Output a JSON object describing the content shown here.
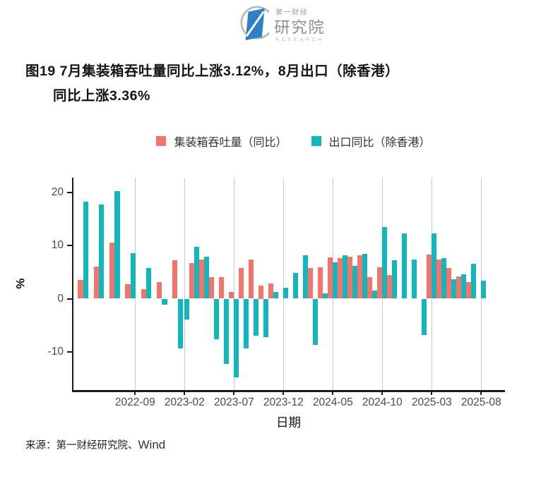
{
  "logo": {
    "brand_top": "第一财经",
    "brand_main": "研究院",
    "brand_sub": "RESEARCH",
    "brand_blue": "#2E80C2"
  },
  "title": {
    "line1": "图19 7月集装箱吞吐量同比上涨3.12%，8月出口（除香港）",
    "line2": "同比上涨3.36%"
  },
  "legend": [
    {
      "label": "集装箱吞吐量（同比）",
      "color": "#F3746D"
    },
    {
      "label": "出口同比（除香港）",
      "color": "#12B7BC"
    }
  ],
  "chart_data": {
    "type": "bar",
    "title": "图19 7月集装箱吞吐量同比上涨3.12%，8月出口（除香港）同比上涨3.36%",
    "xlabel": "日期",
    "ylabel": "%",
    "ylim": [
      -17,
      22.5
    ],
    "yticks": [
      20,
      10,
      0,
      -10
    ],
    "x_tick_labels": [
      "2022-09",
      "2023-02",
      "2023-07",
      "2023-12",
      "2024-05",
      "2024-10",
      "2025-03",
      "2025-08"
    ],
    "grid": "vertical-only",
    "legend_position": "top-center",
    "series_names": {
      "throughput": "集装箱吞吐量（同比）",
      "exports": "出口同比（除香港）"
    },
    "colors": {
      "throughput": "#F3746D",
      "exports": "#12B7BC"
    },
    "rows": [
      {
        "date": "2022-06",
        "throughput": 3.5,
        "exports": 18.2
      },
      {
        "date": "2022-07",
        "throughput": 6.0,
        "exports": 17.7
      },
      {
        "date": "2022-08",
        "throughput": 10.5,
        "exports": 20.2
      },
      {
        "date": "2022-09",
        "throughput": 2.7,
        "exports": 8.6
      },
      {
        "date": "2022-10",
        "throughput": 1.8,
        "exports": 5.7
      },
      {
        "date": "2022-11",
        "throughput": 3.1,
        "exports": -1.1
      },
      {
        "date": "2022-12",
        "throughput": 7.2,
        "exports": -9.3
      },
      {
        "date": "2023-02",
        "throughput": null,
        "exports": -3.9
      },
      {
        "date": "2023-03",
        "throughput": 6.7,
        "exports": 9.7
      },
      {
        "date": "2023-04",
        "throughput": 7.3,
        "exports": 7.9
      },
      {
        "date": "2023-05",
        "throughput": 4.0,
        "exports": -7.6
      },
      {
        "date": "2023-06",
        "throughput": 4.0,
        "exports": -12.2
      },
      {
        "date": "2023-07",
        "throughput": 1.2,
        "exports": -14.8
      },
      {
        "date": "2023-08",
        "throughput": 5.8,
        "exports": -9.3
      },
      {
        "date": "2023-09",
        "throughput": 7.3,
        "exports": -6.9
      },
      {
        "date": "2023-10",
        "throughput": 2.5,
        "exports": -7.2
      },
      {
        "date": "2023-11",
        "throughput": 2.9,
        "exports": 1.2
      },
      {
        "date": "2023-12",
        "throughput": null,
        "exports": 2.0
      },
      {
        "date": "2024-01",
        "throughput": null,
        "exports": 4.9
      },
      {
        "date": "2024-02",
        "throughput": null,
        "exports": 8.1
      },
      {
        "date": "2024-03",
        "throughput": 5.7,
        "exports": -8.7
      },
      {
        "date": "2024-04",
        "throughput": 5.9,
        "exports": 1.0
      },
      {
        "date": "2024-05",
        "throughput": 7.8,
        "exports": 6.8
      },
      {
        "date": "2024-06",
        "throughput": 7.6,
        "exports": 8.2
      },
      {
        "date": "2024-07",
        "throughput": 7.9,
        "exports": 6.1
      },
      {
        "date": "2024-08",
        "throughput": 8.2,
        "exports": 8.4
      },
      {
        "date": "2024-09",
        "throughput": 4.1,
        "exports": 1.5
      },
      {
        "date": "2024-10",
        "throughput": 5.9,
        "exports": 13.4
      },
      {
        "date": "2024-11",
        "throughput": 4.5,
        "exports": 7.2
      },
      {
        "date": "2024-12",
        "throughput": null,
        "exports": 12.2
      },
      {
        "date": "2025-01",
        "throughput": null,
        "exports": 7.4
      },
      {
        "date": "2025-02",
        "throughput": null,
        "exports": -6.8
      },
      {
        "date": "2025-03",
        "throughput": 8.3,
        "exports": 12.3
      },
      {
        "date": "2025-04",
        "throughput": 7.4,
        "exports": 7.6
      },
      {
        "date": "2025-05",
        "throughput": 5.7,
        "exports": 3.7
      },
      {
        "date": "2025-06",
        "throughput": 4.2,
        "exports": 4.6
      },
      {
        "date": "2025-07",
        "throughput": 3.12,
        "exports": 6.5
      },
      {
        "date": "2025-08",
        "throughput": null,
        "exports": 3.36
      }
    ]
  },
  "source": {
    "prefix": "来源：第一财经研究院、",
    "wind": "Wind"
  }
}
